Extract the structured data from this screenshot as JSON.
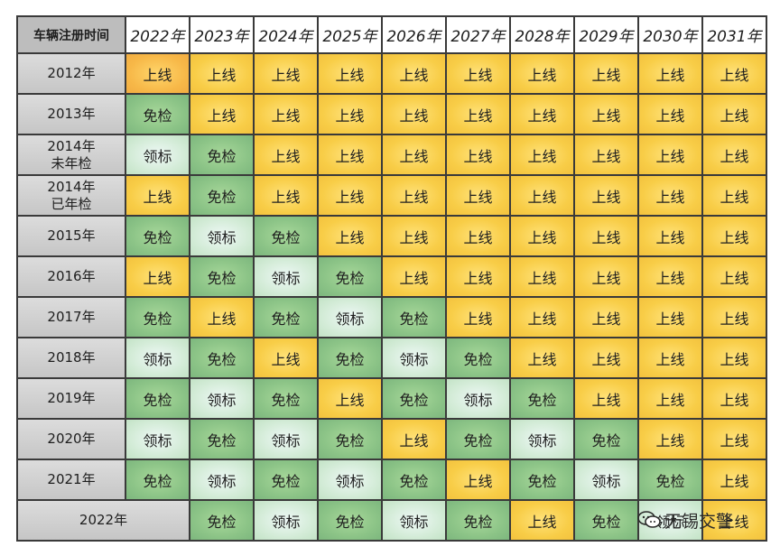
{
  "table": {
    "corner_label": "车辆注册时间",
    "years": [
      "2022年",
      "2023年",
      "2024年",
      "2025年",
      "2026年",
      "2027年",
      "2028年",
      "2029年",
      "2030年",
      "2031年"
    ],
    "rows": [
      {
        "label": "2012年",
        "cells": [
          "上线",
          "上线",
          "上线",
          "上线",
          "上线",
          "上线",
          "上线",
          "上线",
          "上线",
          "上线"
        ]
      },
      {
        "label": "2013年",
        "cells": [
          "免检",
          "上线",
          "上线",
          "上线",
          "上线",
          "上线",
          "上线",
          "上线",
          "上线",
          "上线"
        ]
      },
      {
        "label": "2014年\n未年检",
        "cells": [
          "领标",
          "免检",
          "上线",
          "上线",
          "上线",
          "上线",
          "上线",
          "上线",
          "上线",
          "上线"
        ]
      },
      {
        "label": "2014年\n已年检",
        "cells": [
          "上线",
          "免检",
          "上线",
          "上线",
          "上线",
          "上线",
          "上线",
          "上线",
          "上线",
          "上线"
        ]
      },
      {
        "label": "2015年",
        "cells": [
          "免检",
          "领标",
          "免检",
          "上线",
          "上线",
          "上线",
          "上线",
          "上线",
          "上线",
          "上线"
        ]
      },
      {
        "label": "2016年",
        "cells": [
          "上线",
          "免检",
          "领标",
          "免检",
          "上线",
          "上线",
          "上线",
          "上线",
          "上线",
          "上线"
        ]
      },
      {
        "label": "2017年",
        "cells": [
          "免检",
          "上线",
          "免检",
          "领标",
          "免检",
          "上线",
          "上线",
          "上线",
          "上线",
          "上线"
        ]
      },
      {
        "label": "2018年",
        "cells": [
          "领标",
          "免检",
          "上线",
          "免检",
          "领标",
          "免检",
          "上线",
          "上线",
          "上线",
          "上线"
        ]
      },
      {
        "label": "2019年",
        "cells": [
          "免检",
          "领标",
          "免检",
          "上线",
          "免检",
          "领标",
          "免检",
          "上线",
          "上线",
          "上线"
        ]
      },
      {
        "label": "2020年",
        "cells": [
          "领标",
          "免检",
          "领标",
          "免检",
          "上线",
          "免检",
          "领标",
          "免检",
          "上线",
          "上线"
        ]
      },
      {
        "label": "2021年",
        "cells": [
          "免检",
          "领标",
          "免检",
          "领标",
          "免检",
          "上线",
          "免检",
          "领标",
          "免检",
          "上线"
        ]
      }
    ],
    "last_row": {
      "label": "2022年",
      "cells": [
        "免检",
        "领标",
        "免检",
        "领标",
        "免检",
        "上线",
        "免检",
        "领标",
        "上线"
      ]
    }
  },
  "status_colors": {
    "上线": "#f8cd47",
    "免检": "#8cc487",
    "领标": "#d4ecd8",
    "header_gray": "#bdbdbd"
  },
  "watermark": {
    "text": "无锡交警",
    "icon": "wechat-icon"
  }
}
